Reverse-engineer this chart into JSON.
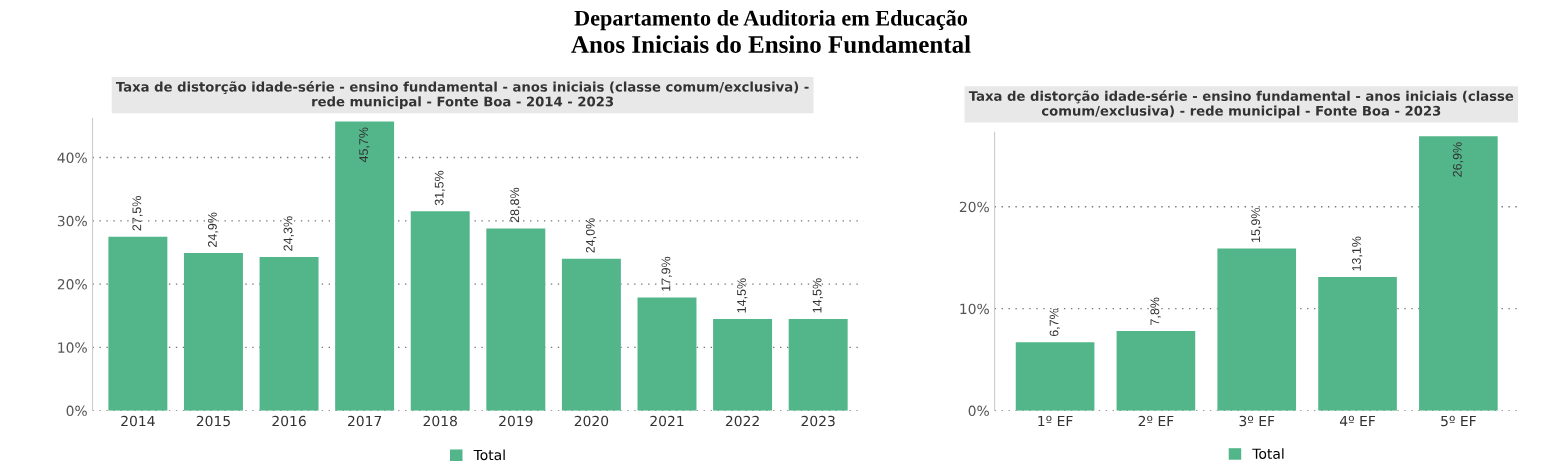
{
  "chart_data": [
    {
      "type": "bar",
      "title": "Taxa de distorção idade-série - ensino fundamental - anos iniciais (classe comum/exclusiva) - rede municipal - Fonte Boa - 2014 - 2023",
      "annotations": [
        "Departamento de Auditoria em Educação",
        "Anos Iniciais do Ensino Fundamental"
      ],
      "categories": [
        "2014",
        "2015",
        "2016",
        "2017",
        "2018",
        "2019",
        "2020",
        "2021",
        "2022",
        "2023"
      ],
      "series": [
        {
          "name": "Total",
          "color": "#52b68a",
          "values": [
            27.5,
            24.9,
            24.3,
            45.7,
            31.5,
            28.8,
            24.0,
            17.9,
            14.5,
            14.5
          ],
          "value_labels": [
            "27,5%",
            "24,9%",
            "24,3%",
            "45,7%",
            "31,5%",
            "28,8%",
            "24,0%",
            "17,9%",
            "14,5%",
            "14,5%"
          ]
        }
      ],
      "ylim": [
        0,
        46.2
      ],
      "yticks": [
        {
          "value": 0,
          "label": "0%"
        },
        {
          "value": 10,
          "label": "10%"
        },
        {
          "value": 20,
          "label": "20%"
        },
        {
          "value": 30,
          "label": "30%"
        },
        {
          "value": 40,
          "label": "40%"
        }
      ],
      "grid": "y",
      "legend": "bottom"
    },
    {
      "type": "bar",
      "title": "Taxa de distorção idade-série - ensino fundamental - anos iniciais (classe comum/exclusiva) - rede municipal - Fonte Boa - 2023",
      "categories": [
        "1º EF",
        "2º EF",
        "3º EF",
        "4º EF",
        "5º EF"
      ],
      "series": [
        {
          "name": "Total",
          "color": "#52b68a",
          "values": [
            6.7,
            7.8,
            15.9,
            13.1,
            26.9
          ],
          "value_labels": [
            "6,7%",
            "7,8%",
            "15,9%",
            "13,1%",
            "26,9%"
          ]
        }
      ],
      "ylim": [
        0,
        27.3
      ],
      "yticks": [
        {
          "value": 0,
          "label": "0%"
        },
        {
          "value": 10,
          "label": "10%"
        },
        {
          "value": 20,
          "label": "20%"
        }
      ],
      "grid": "y",
      "legend": "bottom"
    }
  ]
}
